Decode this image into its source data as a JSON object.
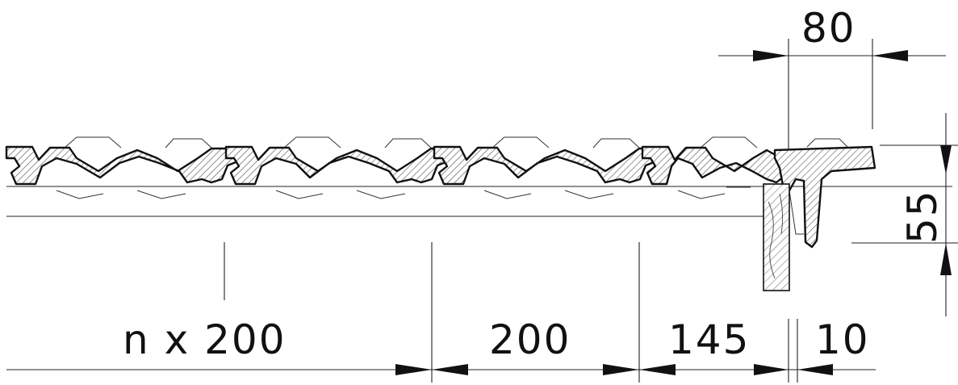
{
  "dimensions": {
    "top_width": "80",
    "height": "55",
    "repeat": "n x 200",
    "pitch": "200",
    "edge": "145",
    "gap": "10"
  }
}
